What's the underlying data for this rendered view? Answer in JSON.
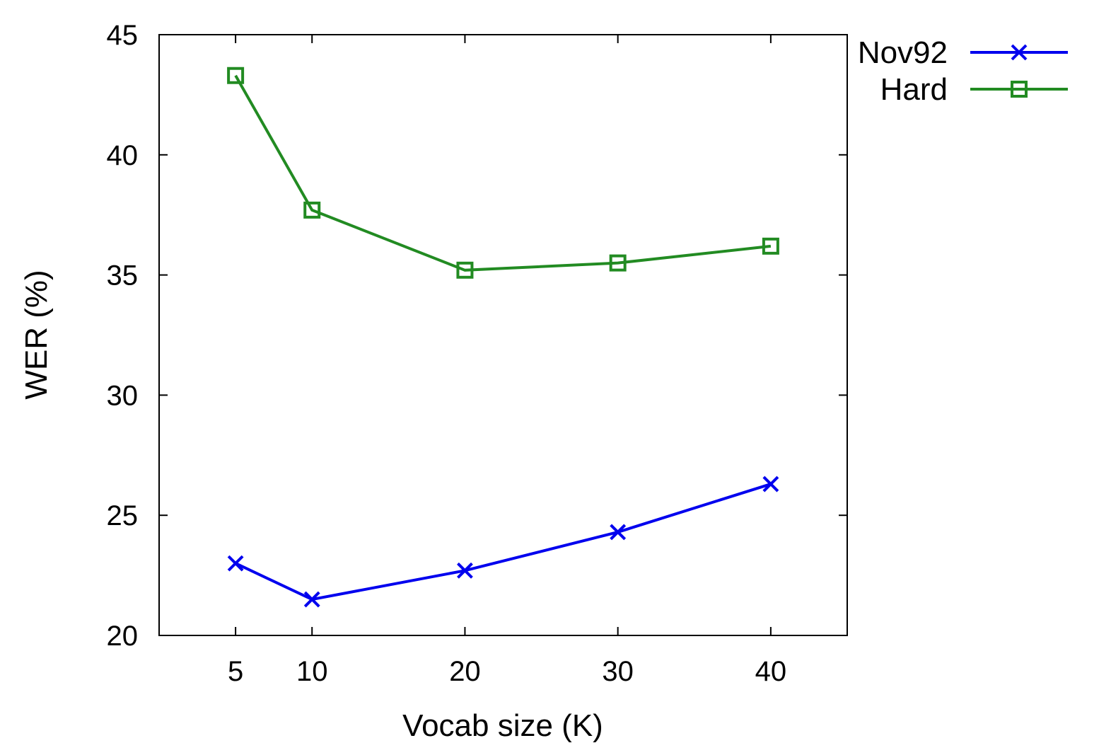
{
  "chart_data": {
    "type": "line",
    "title": "",
    "xlabel": "Vocab size (K)",
    "ylabel": "WER (%)",
    "xlim": [
      0,
      45
    ],
    "ylim": [
      20,
      45
    ],
    "xticks": [
      5,
      10,
      20,
      30,
      40
    ],
    "yticks": [
      20,
      25,
      30,
      35,
      40,
      45
    ],
    "grid": false,
    "legend_position": "outside-top-right",
    "series": [
      {
        "name": "Nov92",
        "color": "#0000ee",
        "marker": "x-cross",
        "x": [
          5,
          10,
          20,
          30,
          40
        ],
        "y": [
          23.0,
          21.5,
          22.7,
          24.3,
          26.3
        ]
      },
      {
        "name": "Hard",
        "color": "#228b22",
        "marker": "open-square",
        "x": [
          5,
          10,
          20,
          30,
          40
        ],
        "y": [
          43.3,
          37.7,
          35.2,
          35.5,
          36.2
        ]
      }
    ]
  }
}
